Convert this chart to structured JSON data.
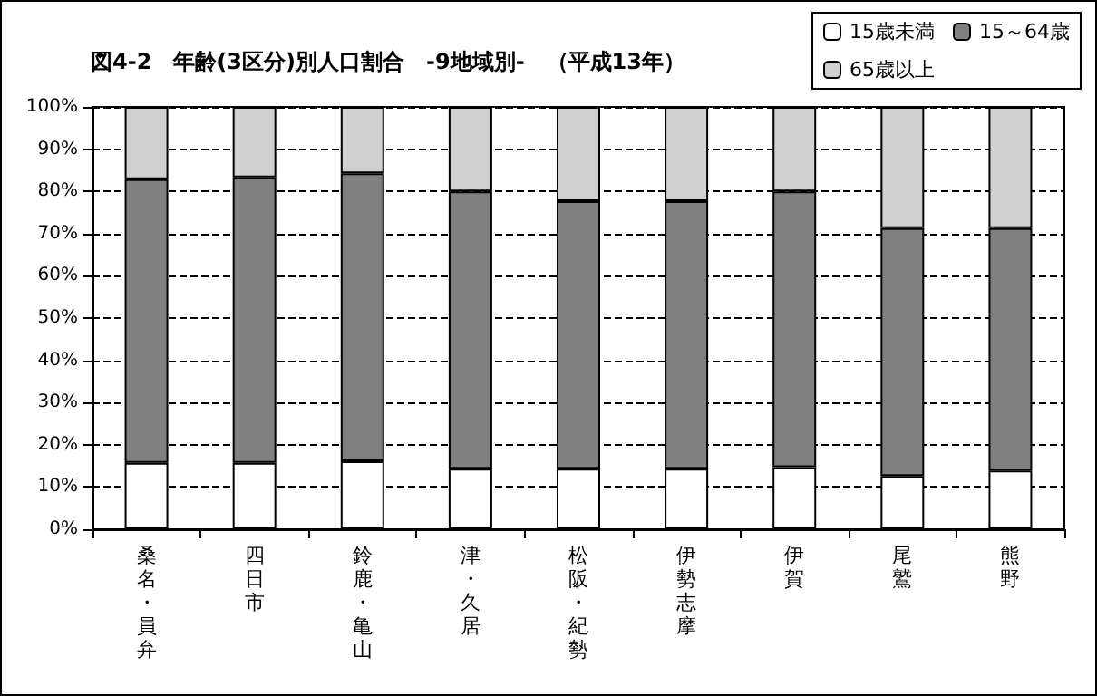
{
  "chart_data": {
    "type": "bar",
    "stacked": true,
    "title": "図4-2　年齢(3区分)別人口割合　-9地域別-　（平成13年）",
    "categories": [
      "桑名・員弁",
      "四日市",
      "鈴鹿・亀山",
      "津・久居",
      "松阪・紀勢",
      "伊勢志摩",
      "伊賀",
      "尾鷲",
      "熊野"
    ],
    "series": [
      {
        "name": "15歳未満",
        "color": "#ffffff",
        "values": [
          15.7,
          15.7,
          16.1,
          14.3,
          14.3,
          14.3,
          14.7,
          12.6,
          13.9
        ]
      },
      {
        "name": "15～64歳",
        "color": "#808080",
        "values": [
          67.2,
          67.6,
          68.2,
          65.7,
          63.4,
          63.4,
          65.3,
          58.7,
          57.4
        ]
      },
      {
        "name": "65歳以上",
        "color": "#d0d0d0",
        "values": [
          17.1,
          16.7,
          15.7,
          20.0,
          22.3,
          22.3,
          20.0,
          28.7,
          28.7
        ]
      }
    ],
    "ylim": [
      0,
      100
    ],
    "yticks": [
      {
        "value": 0,
        "label": "0%"
      },
      {
        "value": 10,
        "label": "10%"
      },
      {
        "value": 20,
        "label": "20%"
      },
      {
        "value": 30,
        "label": "30%"
      },
      {
        "value": 40,
        "label": "40%"
      },
      {
        "value": 50,
        "label": "50%"
      },
      {
        "value": 60,
        "label": "60%"
      },
      {
        "value": 70,
        "label": "70%"
      },
      {
        "value": 80,
        "label": "80%"
      },
      {
        "value": 90,
        "label": "90%"
      },
      {
        "value": 100,
        "label": "100%"
      }
    ],
    "grid": "y",
    "legend": "top right"
  }
}
